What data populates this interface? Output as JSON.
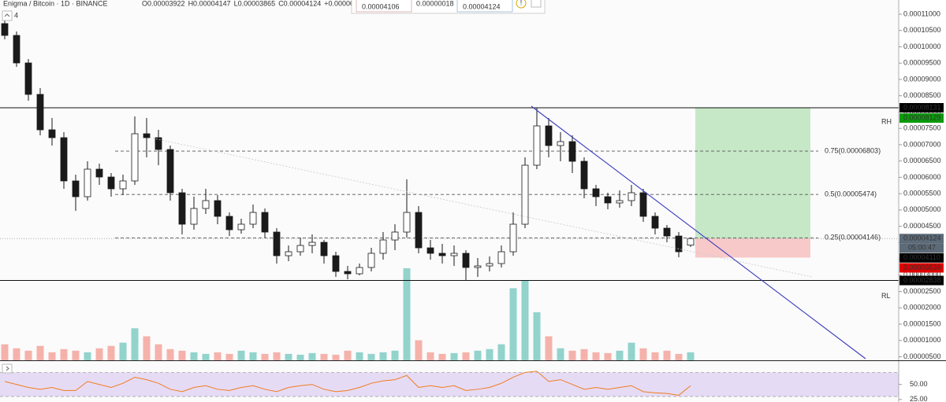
{
  "header": {
    "symbol": "Enigma / Bitcoin · 1D · BINANCE",
    "interval_badge": "4",
    "ohlc": [
      "O0.00003922",
      "H0.00004147",
      "L0.00003865",
      "C0.00004124",
      "+0.00000202"
    ]
  },
  "trade_widget": {
    "sell": "0.00004106",
    "spread": "0.00000018",
    "buy": "0.00004124"
  },
  "countdown": "05:00:47",
  "chart_data": [
    {
      "type": "candlestick",
      "open": [
        0.00010711,
        0.00010349,
        9.505e-05,
        8.541e-05,
        7.456e-05,
        7.215e-05,
        5.889e-05,
        5.406e-05,
        6.25e-05,
        6.009e-05,
        5.648e-05,
        5.889e-05,
        7.335e-05,
        7.215e-05,
        6.853e-05,
        5.527e-05,
        4.563e-05,
        5.045e-05,
        5.286e-05,
        4.804e-05,
        4.394e-05,
        4.563e-05,
        4.924e-05,
        4.322e-05,
        3.598e-05,
        3.719e-05,
        3.912e-05,
        4.008e-05,
        3.598e-05,
        3.116e-05,
        3.044e-05,
        3.237e-05,
        3.671e-05,
        4.08e-05,
        4.322e-05,
        4.924e-05,
        3.839e-05,
        3.671e-05,
        3.598e-05,
        3.671e-05,
        3.237e-05,
        3.285e-05,
        3.357e-05,
        3.719e-05,
        4.563e-05,
        6.371e-05,
        7.576e-05,
        6.974e-05,
        7.094e-05,
        6.491e-05,
        5.648e-05,
        5.406e-05,
        5.214e-05,
        5.286e-05,
        5.527e-05,
        4.804e-05,
        4.442e-05,
        4.201e-05,
        3.922e-05
      ],
      "high": [
        0.00011,
        0.0001047,
        9.626e-05,
        8.734e-05,
        7.817e-05,
        7.383e-05,
        6.082e-05,
        6.491e-05,
        6.419e-05,
        6.13e-05,
        6.082e-05,
        7.866e-05,
        7.817e-05,
        7.456e-05,
        6.974e-05,
        5.648e-05,
        5.406e-05,
        5.648e-05,
        5.455e-05,
        4.924e-05,
        4.731e-05,
        5.165e-05,
        5.045e-05,
        4.442e-05,
        3.912e-05,
        4.153e-05,
        4.249e-05,
        4.08e-05,
        3.719e-05,
        3.285e-05,
        3.357e-05,
        3.839e-05,
        4.322e-05,
        4.563e-05,
        5.937e-05,
        5.117e-05,
        4.08e-05,
        3.96e-05,
        3.912e-05,
        3.767e-05,
        3.526e-05,
        3.574e-05,
        3.912e-05,
        4.924e-05,
        6.612e-05,
        8.131e-05,
        7.817e-05,
        7.383e-05,
        7.287e-05,
        6.612e-05,
        5.768e-05,
        5.527e-05,
        5.599e-05,
        5.768e-05,
        5.648e-05,
        4.924e-05,
        4.539e-05,
        4.322e-05,
        4.147e-05
      ],
      "low": [
        0.00010228,
        9.385e-05,
        8.348e-05,
        7.287e-05,
        6.974e-05,
        5.648e-05,
        4.972e-05,
        5.286e-05,
        5.768e-05,
        5.406e-05,
        5.455e-05,
        5.768e-05,
        6.612e-05,
        6.371e-05,
        5.286e-05,
        4.249e-05,
        4.394e-05,
        4.876e-05,
        4.563e-05,
        4.201e-05,
        4.273e-05,
        4.442e-05,
        4.153e-05,
        3.357e-05,
        3.429e-05,
        3.598e-05,
        3.671e-05,
        3.357e-05,
        2.947e-05,
        2.875e-05,
        2.995e-05,
        3.116e-05,
        3.478e-05,
        3.767e-05,
        4.153e-05,
        3.671e-05,
        3.478e-05,
        3.357e-05,
        3.285e-05,
        2.838e-05,
        2.947e-05,
        3.116e-05,
        3.237e-05,
        3.598e-05,
        4.442e-05,
        6.25e-05,
        6.612e-05,
        6.491e-05,
        6.13e-05,
        5.358e-05,
        5.117e-05,
        5.021e-05,
        5.069e-05,
        5.117e-05,
        4.635e-05,
        4.249e-05,
        4.008e-05,
        3.55e-05,
        3.865e-05
      ],
      "close": [
        0.00010349,
        9.505e-05,
        8.541e-05,
        7.456e-05,
        7.215e-05,
        5.889e-05,
        5.406e-05,
        6.25e-05,
        6.009e-05,
        5.648e-05,
        5.889e-05,
        7.335e-05,
        7.215e-05,
        6.853e-05,
        5.527e-05,
        4.563e-05,
        5.045e-05,
        5.286e-05,
        4.804e-05,
        4.394e-05,
        4.563e-05,
        4.924e-05,
        4.322e-05,
        3.598e-05,
        3.719e-05,
        3.912e-05,
        4.008e-05,
        3.598e-05,
        3.116e-05,
        3.044e-05,
        3.237e-05,
        3.671e-05,
        4.08e-05,
        4.322e-05,
        4.924e-05,
        3.839e-05,
        3.671e-05,
        3.598e-05,
        3.671e-05,
        3.237e-05,
        3.285e-05,
        3.357e-05,
        3.719e-05,
        4.563e-05,
        6.371e-05,
        7.576e-05,
        6.974e-05,
        7.094e-05,
        6.491e-05,
        5.648e-05,
        5.406e-05,
        5.214e-05,
        5.286e-05,
        5.527e-05,
        4.804e-05,
        4.442e-05,
        4.201e-05,
        3.719e-05,
        4.124e-05
      ],
      "colors": {
        "up": "#ffffff",
        "down": "#1a1a1a",
        "outline": "#1a1a1a"
      },
      "ylim": [
        3.92e-06,
        0.00011434
      ],
      "yticks": [
        {
          "value": 5e-06,
          "label": "0.00000500"
        },
        {
          "value": 1e-05,
          "label": "0.00001000"
        },
        {
          "value": 1.5e-05,
          "label": "0.00001500"
        },
        {
          "value": 2e-05,
          "label": "0.00002000"
        },
        {
          "value": 2.5e-05,
          "label": "0.00002500"
        },
        {
          "value": 3e-05,
          "label": "0.00003000"
        },
        {
          "value": 3.5e-05,
          "label": "0.00003500"
        },
        {
          "value": 4e-05,
          "label": "0.00004000"
        },
        {
          "value": 4.5e-05,
          "label": "0.00004500"
        },
        {
          "value": 5e-05,
          "label": "0.00005000"
        },
        {
          "value": 5.5e-05,
          "label": "0.00005500"
        },
        {
          "value": 6e-05,
          "label": "0.00006000"
        },
        {
          "value": 6.5e-05,
          "label": "0.00006500"
        },
        {
          "value": 7e-05,
          "label": "0.00007000"
        },
        {
          "value": 7.5e-05,
          "label": "0.00007500"
        },
        {
          "value": 8e-05,
          "label": "0.00008000"
        },
        {
          "value": 8.5e-05,
          "label": "0.00008500"
        },
        {
          "value": 9e-05,
          "label": "0.00009000"
        },
        {
          "value": 9.5e-05,
          "label": "0.00009500"
        },
        {
          "value": 0.0001,
          "label": "0.00010000"
        },
        {
          "value": 0.000105,
          "label": "0.00010500"
        },
        {
          "value": 0.00011,
          "label": "0.00011000"
        }
      ],
      "levels": [
        {
          "name": "RH",
          "value": 8.131e-05
        },
        {
          "name": "RL",
          "value": 2.838e-05
        }
      ],
      "fib_levels": [
        {
          "label": "0.75(0.00006803)",
          "value": 6.803e-05
        },
        {
          "label": "0.5(0.00005474)",
          "value": 5.474e-05
        },
        {
          "label": "0.25(0.00004146)",
          "value": 4.146e-05
        }
      ],
      "position": {
        "target": 8.129e-05,
        "entry": 4.124e-05,
        "stop": 3.539e-05,
        "profit_color": "#c6e8c6",
        "loss_color": "#f8c9c9"
      },
      "price_markers": [
        {
          "value": 8.131e-05,
          "label": "0.00008131",
          "color": "#000000"
        },
        {
          "value": 8.129e-05,
          "label": "0.00008129",
          "color": "#0a9a0a"
        },
        {
          "value": 4.124e-05,
          "label": "0.00004124",
          "color": "#5d6b79"
        },
        {
          "value": 4.11e-05,
          "label": "0.00004110",
          "color": "#000000"
        },
        {
          "value": 3.539e-05,
          "label": "0.00003539",
          "color": "#e00000"
        },
        {
          "value": 2.838e-05,
          "label": "0.00002838",
          "color": "#000000"
        }
      ]
    },
    {
      "type": "bar",
      "values": [
        20,
        15,
        12,
        18,
        10,
        14,
        12,
        10,
        15,
        18,
        22,
        40,
        30,
        20,
        14,
        12,
        10,
        8,
        10,
        8,
        12,
        10,
        8,
        10,
        8,
        7,
        9,
        8,
        7,
        12,
        10,
        8,
        10,
        12,
        115,
        25,
        10,
        8,
        9,
        10,
        12,
        14,
        20,
        90,
        100,
        60,
        30,
        15,
        12,
        14,
        10,
        9,
        12,
        22,
        15,
        10,
        12,
        8,
        10
      ],
      "ylim": [
        0,
        450
      ],
      "up_color": "#7fcbc3",
      "down_color": "#f2a49c"
    },
    {
      "type": "line",
      "values": [
        55,
        50,
        45,
        42,
        45,
        40,
        40,
        55,
        50,
        45,
        52,
        62,
        58,
        52,
        42,
        38,
        45,
        48,
        42,
        40,
        45,
        48,
        42,
        38,
        45,
        48,
        50,
        42,
        38,
        40,
        45,
        52,
        56,
        58,
        65,
        45,
        48,
        45,
        48,
        40,
        42,
        45,
        52,
        62,
        70,
        72,
        55,
        58,
        50,
        42,
        45,
        42,
        45,
        48,
        38,
        36,
        35,
        32,
        48
      ],
      "color": "#f07c1e",
      "ylim": [
        20.8,
        88.9
      ],
      "yticks": [
        {
          "value": 50,
          "label": "50.00"
        },
        {
          "value": 25,
          "label": "25.00"
        }
      ],
      "band": [
        30,
        70
      ],
      "band_color": "#e6dbf5"
    }
  ]
}
